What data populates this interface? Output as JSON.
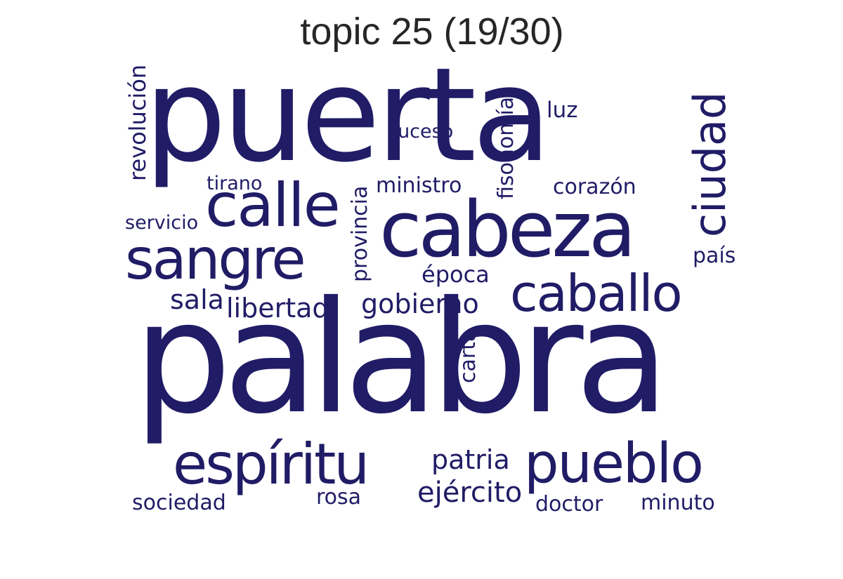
{
  "title": "topic 25 (19/30)",
  "colors": {
    "word": "#211c66",
    "title": "#262626"
  },
  "words": {
    "puerta": "puerta",
    "palabra": "palabra",
    "cabeza": "cabeza",
    "calle": "calle",
    "sangre": "sangre",
    "caballo": "caballo",
    "ciudad": "ciudad",
    "espiritu": "espíritu",
    "pueblo": "pueblo",
    "revolucion": "revolución",
    "fisonomia": "fisonomía",
    "luz": "luz",
    "suceso": "suceso",
    "tirano": "tirano",
    "ministro": "ministro",
    "corazon": "corazón",
    "provincia": "provincia",
    "servicio": "servicio",
    "pais": "país",
    "epoca": "época",
    "sala": "sala",
    "libertad": "libertad",
    "gobierno": "gobierno",
    "carta": "carta",
    "patria": "patria",
    "ejercito": "ejército",
    "rosa": "rosa",
    "sociedad": "sociedad",
    "doctor": "doctor",
    "minuto": "minuto"
  }
}
